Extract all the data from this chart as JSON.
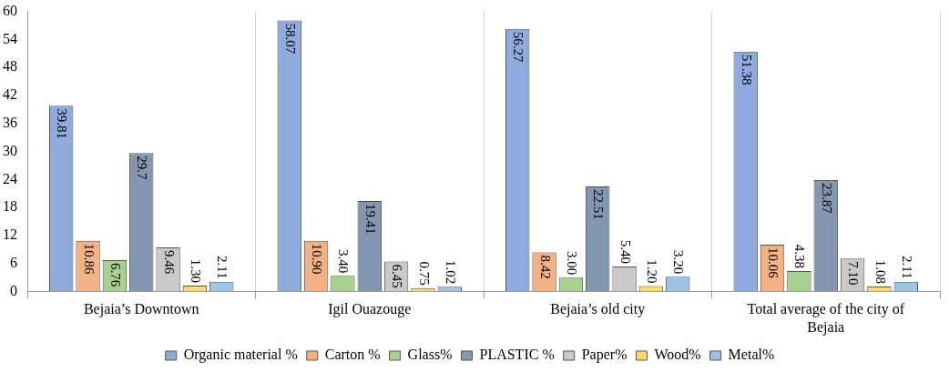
{
  "chart_data": {
    "type": "bar",
    "categories": [
      "Bejaia’s Downtown",
      "Igil Ouazouge",
      "Bejaia’s old city",
      "Total average of the city of Bejaia"
    ],
    "series": [
      {
        "name": "Organic material %",
        "color": "#8faadc",
        "values": [
          39.81,
          58.07,
          56.27,
          51.38
        ],
        "value_labels": [
          "39.81",
          "58.07",
          "56.27",
          "51.38"
        ]
      },
      {
        "name": "Carton %",
        "color": "#f4b183",
        "values": [
          10.86,
          10.9,
          8.42,
          10.06
        ],
        "value_labels": [
          "10.86",
          "10.90",
          "8.42",
          "10.06"
        ]
      },
      {
        "name": "Glass%",
        "color": "#a9d18e",
        "values": [
          6.76,
          3.4,
          3.0,
          4.38
        ],
        "value_labels": [
          "6.76",
          "3.40",
          "3.00",
          "4.38"
        ]
      },
      {
        "name": "PLASTIC %",
        "color": "#8497b0",
        "values": [
          29.7,
          19.41,
          22.51,
          23.87
        ],
        "value_labels": [
          "29.7",
          "19.41",
          "22.51",
          "23.87"
        ]
      },
      {
        "name": "Paper%",
        "color": "#c9c9c9",
        "values": [
          9.46,
          6.45,
          5.4,
          7.1
        ],
        "value_labels": [
          "9.46",
          "6.45",
          "5.40",
          "7.10"
        ]
      },
      {
        "name": "Wood%",
        "color": "#ffd966",
        "values": [
          1.3,
          0.75,
          1.2,
          1.08
        ],
        "value_labels": [
          "1.30",
          "0.75",
          "1.20",
          "1.08"
        ]
      },
      {
        "name": "Metal%",
        "color": "#9dc3e6",
        "values": [
          2.11,
          1.02,
          3.2,
          2.11
        ],
        "value_labels": [
          "2.11",
          "1.02",
          "3.20",
          "2.11"
        ]
      }
    ],
    "ylim": [
      0,
      60
    ],
    "yticks": [
      0,
      6,
      12,
      18,
      24,
      30,
      36,
      42,
      48,
      54,
      60
    ],
    "grid": "x",
    "legend": "bottom"
  }
}
